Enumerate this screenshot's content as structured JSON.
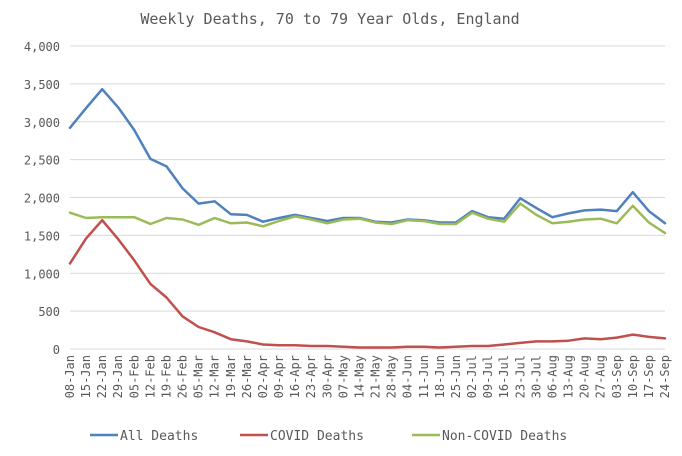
{
  "chart_data": {
    "type": "line",
    "title": "Weekly Deaths, 70 to 79 Year Olds, England",
    "xlabel": "",
    "ylabel": "",
    "ylim": [
      0,
      4000
    ],
    "yticks": [
      "0",
      "500",
      "1,000",
      "1,500",
      "2,000",
      "2,500",
      "3,000",
      "3,500",
      "4,000"
    ],
    "ytick_values": [
      0,
      500,
      1000,
      1500,
      2000,
      2500,
      3000,
      3500,
      4000
    ],
    "grid": true,
    "legend_position": "bottom",
    "categories": [
      "08-Jan",
      "15-Jan",
      "22-Jan",
      "29-Jan",
      "05-Feb",
      "12-Feb",
      "19-Feb",
      "26-Feb",
      "05-Mar",
      "12-Mar",
      "19-Mar",
      "26-Mar",
      "02-Apr",
      "09-Apr",
      "16-Apr",
      "23-Apr",
      "30-Apr",
      "07-May",
      "14-May",
      "21-May",
      "28-May",
      "04-Jun",
      "11-Jun",
      "18-Jun",
      "25-Jun",
      "02-Jul",
      "09-Jul",
      "16-Jul",
      "23-Jul",
      "30-Jul",
      "06-Aug",
      "13-Aug",
      "20-Aug",
      "27-Aug",
      "03-Sep",
      "10-Sep",
      "17-Sep",
      "24-Sep"
    ],
    "series": [
      {
        "name": "All Deaths",
        "color": "#4f81bd",
        "values": [
          2920,
          3180,
          3430,
          3190,
          2890,
          2510,
          2410,
          2120,
          1920,
          1950,
          1780,
          1770,
          1680,
          1730,
          1770,
          1730,
          1690,
          1730,
          1730,
          1680,
          1670,
          1710,
          1700,
          1670,
          1670,
          1820,
          1740,
          1720,
          1990,
          1860,
          1740,
          1790,
          1830,
          1840,
          1820,
          2070,
          1820,
          1660
        ]
      },
      {
        "name": "COVID Deaths",
        "color": "#c0504d",
        "values": [
          1130,
          1460,
          1700,
          1450,
          1170,
          860,
          680,
          430,
          290,
          220,
          130,
          100,
          60,
          50,
          50,
          40,
          40,
          30,
          20,
          20,
          20,
          30,
          30,
          20,
          30,
          40,
          40,
          60,
          80,
          100,
          100,
          110,
          140,
          130,
          150,
          190,
          160,
          140
        ]
      },
      {
        "name": "Non-COVID Deaths",
        "color": "#9bbb59",
        "values": [
          1800,
          1730,
          1740,
          1740,
          1740,
          1650,
          1730,
          1710,
          1640,
          1730,
          1660,
          1670,
          1620,
          1690,
          1750,
          1710,
          1660,
          1710,
          1720,
          1670,
          1650,
          1700,
          1690,
          1650,
          1650,
          1800,
          1720,
          1680,
          1920,
          1770,
          1660,
          1680,
          1710,
          1720,
          1660,
          1890,
          1670,
          1530
        ]
      }
    ]
  }
}
